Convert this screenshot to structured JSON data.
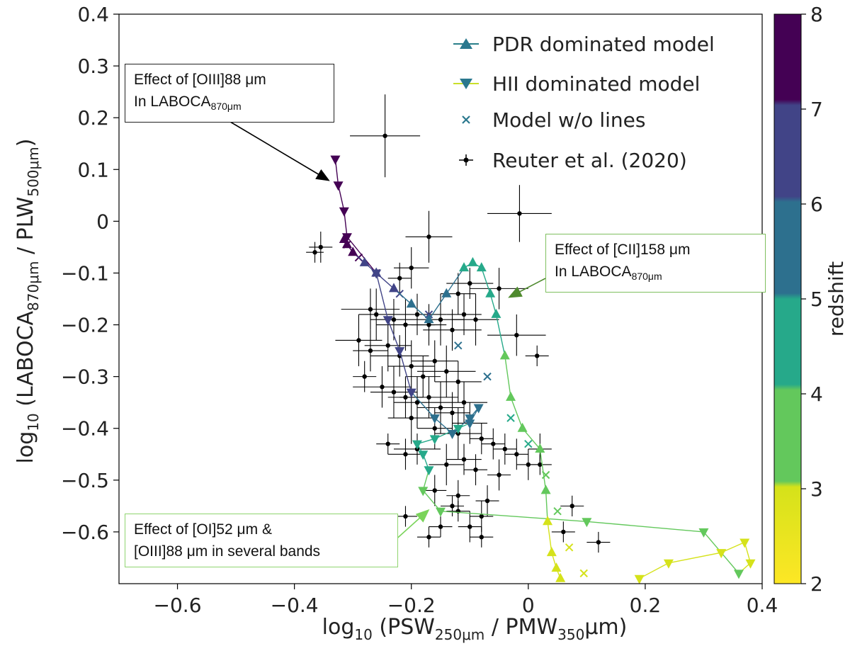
{
  "chart_data": {
    "type": "scatter",
    "xlabel_main": "log",
    "xlabel_sub": "10",
    "xlabel_rest": " (PSW",
    "xlabel_sub2": "250μm",
    "xlabel_mid": " / PMW",
    "xlabel_sub3": "350",
    "xlabel_end": "μm)",
    "ylabel_main": "log",
    "ylabel_sub": "10",
    "ylabel_rest": " (LABOCA",
    "ylabel_sub2": "870μm",
    "ylabel_mid": " / PLW",
    "ylabel_sub3": "500μm",
    "ylabel_end": ")",
    "xlim": [
      -0.7,
      0.4
    ],
    "ylim": [
      -0.7,
      0.4
    ],
    "xticks": [
      -0.6,
      -0.4,
      -0.2,
      0,
      0.2,
      0.4
    ],
    "xtick_labels": [
      "−0.6",
      "−0.4",
      "−0.2",
      "0",
      "0.2",
      "0.4"
    ],
    "yticks": [
      0.4,
      0.3,
      0.2,
      0.1,
      0,
      -0.1,
      -0.2,
      -0.3,
      -0.4,
      -0.5,
      -0.6
    ],
    "ytick_labels": [
      "0.4",
      "0.3",
      "0.2",
      "0.1",
      "0",
      "−0.1",
      "−0.2",
      "−0.3",
      "−0.4",
      "−0.5",
      "−0.6"
    ],
    "colorbar": {
      "label": "redshift",
      "range": [
        2,
        8
      ],
      "ticks": [
        "2",
        "3",
        "4",
        "5",
        "6",
        "7",
        "8"
      ],
      "colors": [
        "#d5e21a",
        "#63c85c",
        "#26a98a",
        "#2d708e",
        "#414487",
        "#440154"
      ]
    },
    "legend": [
      {
        "label": "PDR dominated model",
        "marker": "triangle-up"
      },
      {
        "label": "HII dominated model",
        "marker": "triangle-down"
      },
      {
        "label": "Model w/o lines",
        "marker": "x"
      },
      {
        "label": "Reuter et al. (2020)",
        "marker": "errorbar"
      }
    ],
    "legend_position": "top-right",
    "series": [
      {
        "name": "PDR dominated model",
        "z": [
          2.0,
          2.3,
          2.6,
          2.9,
          3.1,
          3.3,
          3.5,
          3.7,
          3.9,
          4.1,
          4.3,
          4.5,
          4.7,
          4.9,
          5.2,
          5.5,
          5.8,
          6.1,
          6.4,
          6.7,
          7.0,
          7.5,
          8.0
        ],
        "x": [
          0.055,
          0.048,
          0.04,
          0.033,
          0.03,
          0.02,
          -0.01,
          -0.03,
          -0.04,
          -0.055,
          -0.065,
          -0.08,
          -0.095,
          -0.11,
          -0.14,
          -0.17,
          -0.2,
          -0.23,
          -0.26,
          -0.28,
          -0.3,
          -0.31,
          -0.315
        ],
        "y": [
          -0.69,
          -0.67,
          -0.64,
          -0.58,
          -0.52,
          -0.44,
          -0.4,
          -0.34,
          -0.26,
          -0.18,
          -0.14,
          -0.09,
          -0.08,
          -0.09,
          -0.14,
          -0.19,
          -0.16,
          -0.13,
          -0.1,
          -0.08,
          -0.06,
          -0.045,
          -0.035
        ]
      },
      {
        "name": "HII dominated model",
        "z": [
          2.0,
          2.2,
          2.4,
          2.6,
          2.8,
          3.0,
          3.2,
          3.4,
          3.6,
          3.8,
          4.0,
          4.2,
          4.4,
          4.6,
          4.8,
          5.0,
          5.2,
          5.4,
          5.6,
          5.8,
          6.0,
          6.3,
          6.6,
          6.9,
          7.1,
          7.4,
          7.7,
          8.0
        ],
        "x": [
          0.19,
          0.24,
          0.33,
          0.37,
          0.38,
          0.36,
          0.3,
          0.1,
          -0.15,
          -0.18,
          -0.17,
          -0.18,
          -0.19,
          -0.16,
          -0.12,
          -0.1,
          -0.085,
          -0.1,
          -0.13,
          -0.16,
          -0.2,
          -0.22,
          -0.24,
          -0.26,
          -0.31,
          -0.315,
          -0.325,
          -0.33
        ],
        "y": [
          -0.69,
          -0.66,
          -0.64,
          -0.62,
          -0.66,
          -0.68,
          -0.6,
          -0.58,
          -0.56,
          -0.52,
          -0.48,
          -0.45,
          -0.43,
          -0.42,
          -0.4,
          -0.39,
          -0.36,
          -0.38,
          -0.41,
          -0.38,
          -0.33,
          -0.25,
          -0.19,
          -0.1,
          -0.03,
          0.02,
          0.07,
          0.12
        ]
      },
      {
        "name": "Model w/o lines",
        "z": [
          2.0,
          2.5,
          3.0,
          3.5,
          4.0,
          4.5,
          5.0,
          5.5,
          6.0,
          6.5,
          7.0,
          7.5,
          8.0
        ],
        "x": [
          0.095,
          0.07,
          0.05,
          0.03,
          0.0,
          -0.03,
          -0.07,
          -0.12,
          -0.17,
          -0.22,
          -0.26,
          -0.29,
          -0.31
        ],
        "y": [
          -0.68,
          -0.63,
          -0.56,
          -0.49,
          -0.43,
          -0.38,
          -0.3,
          -0.24,
          -0.18,
          -0.14,
          -0.1,
          -0.07,
          -0.045
        ]
      },
      {
        "name": "Reuter et al. (2020)",
        "points": [
          [
            -0.245,
            0.165,
            0.06,
            0.08
          ],
          [
            -0.015,
            0.015,
            0.055,
            0.055
          ],
          [
            -0.355,
            -0.05,
            0.02,
            0.03
          ],
          [
            -0.365,
            -0.06,
            0.015,
            0.02
          ],
          [
            -0.17,
            -0.03,
            0.04,
            0.05
          ],
          [
            -0.2,
            -0.09,
            0.03,
            0.04
          ],
          [
            -0.22,
            -0.11,
            0.02,
            0.03
          ],
          [
            -0.1,
            -0.12,
            0.04,
            0.03
          ],
          [
            -0.12,
            -0.14,
            0.03,
            0.04
          ],
          [
            -0.05,
            -0.13,
            0.05,
            0.04
          ],
          [
            -0.27,
            -0.17,
            0.05,
            0.04
          ],
          [
            -0.26,
            -0.18,
            0.03,
            0.05
          ],
          [
            -0.23,
            -0.19,
            0.04,
            0.04
          ],
          [
            -0.21,
            -0.2,
            0.05,
            0.05
          ],
          [
            -0.19,
            -0.18,
            0.05,
            0.04
          ],
          [
            -0.17,
            -0.2,
            0.03,
            0.04
          ],
          [
            -0.15,
            -0.19,
            0.04,
            0.05
          ],
          [
            -0.13,
            -0.21,
            0.05,
            0.04
          ],
          [
            -0.11,
            -0.18,
            0.03,
            0.04
          ],
          [
            -0.09,
            -0.19,
            0.04,
            0.05
          ],
          [
            -0.02,
            -0.22,
            0.05,
            0.04
          ],
          [
            -0.29,
            -0.23,
            0.04,
            0.05
          ],
          [
            -0.27,
            -0.25,
            0.03,
            0.04
          ],
          [
            -0.24,
            -0.24,
            0.04,
            0.05
          ],
          [
            -0.22,
            -0.26,
            0.05,
            0.04
          ],
          [
            -0.2,
            -0.28,
            0.04,
            0.05
          ],
          [
            -0.18,
            -0.3,
            0.03,
            0.04
          ],
          [
            -0.16,
            -0.27,
            0.04,
            0.04
          ],
          [
            -0.14,
            -0.29,
            0.05,
            0.05
          ],
          [
            -0.12,
            -0.31,
            0.04,
            0.04
          ],
          [
            -0.28,
            -0.3,
            0.02,
            0.03
          ],
          [
            0.015,
            -0.26,
            0.02,
            0.02
          ],
          [
            -0.25,
            -0.32,
            0.05,
            0.04
          ],
          [
            -0.23,
            -0.33,
            0.04,
            0.05
          ],
          [
            -0.21,
            -0.34,
            0.03,
            0.04
          ],
          [
            -0.19,
            -0.35,
            0.04,
            0.05
          ],
          [
            -0.17,
            -0.34,
            0.05,
            0.04
          ],
          [
            -0.15,
            -0.36,
            0.04,
            0.05
          ],
          [
            -0.13,
            -0.37,
            0.03,
            0.04
          ],
          [
            -0.11,
            -0.35,
            0.04,
            0.04
          ],
          [
            -0.2,
            -0.38,
            0.04,
            0.05
          ],
          [
            -0.16,
            -0.4,
            0.03,
            0.04
          ],
          [
            -0.12,
            -0.41,
            0.04,
            0.05
          ],
          [
            -0.1,
            -0.39,
            0.03,
            0.04
          ],
          [
            -0.08,
            -0.42,
            0.02,
            0.03
          ],
          [
            -0.06,
            -0.43,
            0.02,
            0.03
          ],
          [
            -0.04,
            -0.44,
            0.02,
            0.03
          ],
          [
            -0.02,
            -0.45,
            0.02,
            0.03
          ],
          [
            0.02,
            -0.44,
            0.02,
            0.03
          ],
          [
            -0.19,
            -0.44,
            0.04,
            0.03
          ],
          [
            -0.21,
            -0.45,
            0.03,
            0.03
          ],
          [
            -0.14,
            -0.47,
            0.03,
            0.04
          ],
          [
            -0.11,
            -0.46,
            0.03,
            0.03
          ],
          [
            -0.09,
            -0.48,
            0.02,
            0.03
          ],
          [
            -0.05,
            -0.49,
            0.02,
            0.03
          ],
          [
            0.0,
            -0.47,
            0.02,
            0.03
          ],
          [
            0.02,
            -0.47,
            0.02,
            0.02
          ],
          [
            -0.16,
            -0.52,
            0.02,
            0.03
          ],
          [
            -0.12,
            -0.53,
            0.02,
            0.03
          ],
          [
            -0.07,
            -0.54,
            0.02,
            0.03
          ],
          [
            -0.08,
            -0.57,
            0.02,
            0.03
          ],
          [
            -0.12,
            -0.56,
            0.02,
            0.02
          ],
          [
            -0.1,
            -0.59,
            0.02,
            0.03
          ],
          [
            0.075,
            -0.55,
            0.02,
            0.02
          ],
          [
            0.12,
            -0.62,
            0.02,
            0.02
          ],
          [
            0.06,
            -0.6,
            0.02,
            0.02
          ],
          [
            -0.15,
            -0.59,
            0.02,
            0.02
          ],
          [
            -0.13,
            -0.55,
            0.02,
            0.02
          ],
          [
            -0.08,
            -0.61,
            0.02,
            0.02
          ],
          [
            -0.17,
            -0.61,
            0.02,
            0.02
          ],
          [
            -0.21,
            -0.57,
            0.02,
            0.02
          ],
          [
            -0.24,
            -0.43,
            0.02,
            0.02
          ]
        ]
      }
    ],
    "annotations": [
      {
        "id": "oiii",
        "line1": "Effect of  [OIII]88 μm",
        "line2_pre": "In LABOCA",
        "line2_sub": "870μm",
        "arrow_color": "#000000",
        "points_to": [
          -0.335,
          0.095
        ]
      },
      {
        "id": "cii",
        "line1": "Effect of  [CII]158 μm",
        "line2_pre": "In LABOCA",
        "line2_sub": "870μm",
        "arrow_color": "#4f8a2e",
        "points_to": [
          -0.045,
          -0.115
        ]
      },
      {
        "id": "oi",
        "line1": "Effect of [OI]52 μm &",
        "line2_pre": "[OIII]88 μm in several bands",
        "line2_sub": "",
        "arrow_color": "#6fcf4f",
        "points_to": [
          -0.18,
          -0.53
        ]
      }
    ]
  }
}
